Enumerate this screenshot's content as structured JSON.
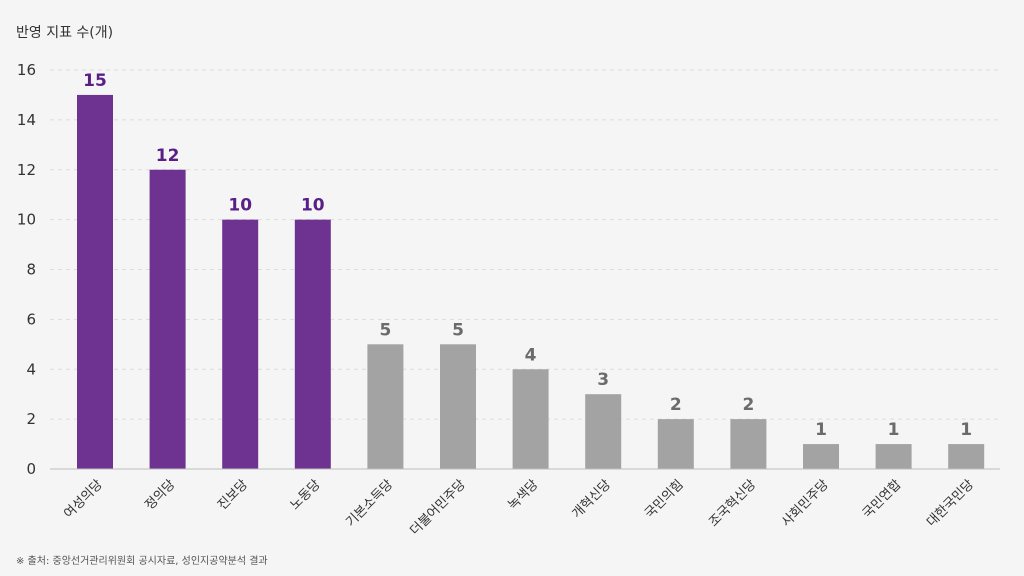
{
  "chart_data": {
    "type": "bar",
    "ylabel": "반영 지표 수(개)",
    "ylim": [
      0,
      16
    ],
    "yticks": [
      0,
      2,
      4,
      6,
      8,
      10,
      12,
      14,
      16
    ],
    "grid": true,
    "categories": [
      "여성의당",
      "정의당",
      "진보당",
      "노동당",
      "기본소득당",
      "더불어민주당",
      "녹색당",
      "개혁신당",
      "국민의힘",
      "조국혁신당",
      "사회민주당",
      "국민연합",
      "대한국민당"
    ],
    "values": [
      15,
      12,
      10,
      10,
      5,
      5,
      4,
      3,
      2,
      2,
      1,
      1,
      1
    ],
    "highlight_count": 4,
    "colors": {
      "highlight_bar": "#6e3390",
      "highlight_label": "#5a1f86",
      "other_bar": "#a3a3a3",
      "other_label": "#6b6b6b"
    }
  },
  "source_note": "※ 출처: 중앙선거관리위원회 공시자료, 성인지공약분석 결과"
}
